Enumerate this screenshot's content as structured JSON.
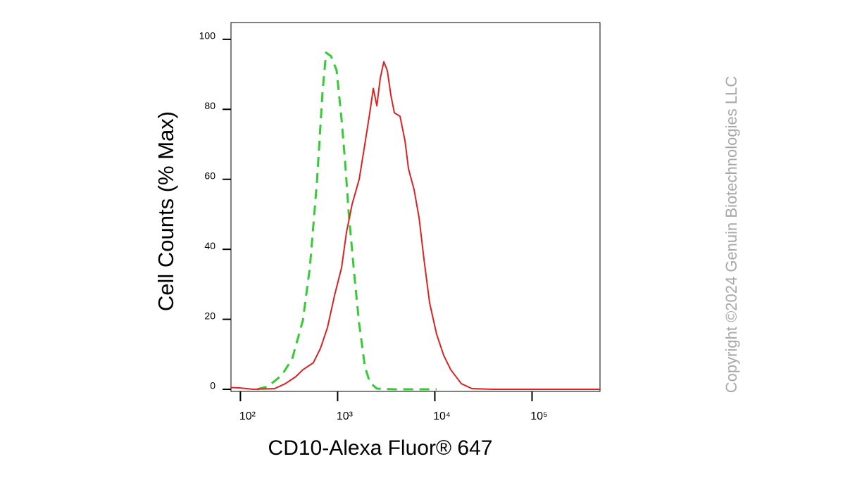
{
  "chart_data": {
    "type": "line",
    "xlabel": "CD10-Alexa Fluor® 647",
    "ylabel": "Cell Counts (% Max)",
    "annotation": "Copyright ©2024 Genuin Biotechnologies LLC",
    "xscale": "log",
    "xlim": [
      80,
      500000
    ],
    "xticks": [
      {
        "value": 100,
        "label": "10²"
      },
      {
        "value": 1000,
        "label": "10³"
      },
      {
        "value": 10000,
        "label": "10⁴"
      },
      {
        "value": 100000,
        "label": "10⁵"
      }
    ],
    "ylim": [
      -0.6,
      104.8
    ],
    "yticks": [
      0,
      20,
      40,
      60,
      80,
      100
    ],
    "grid": false,
    "series": [
      {
        "color": "#33cc33",
        "dashed": true,
        "x": [
          148,
          191,
          266,
          341,
          439,
          518,
          612,
          700,
          761,
          855,
          977,
          1099,
          1194,
          1298,
          1483,
          1667,
          1905,
          2142,
          2531,
          3837,
          10440
        ],
        "values": [
          0,
          0.8,
          4,
          8.7,
          19.7,
          34.8,
          59,
          85,
          96.2,
          95.2,
          91.1,
          77,
          65,
          50.7,
          32.8,
          18.7,
          6.6,
          2,
          0.2,
          0,
          0
        ]
      },
      {
        "color": "#e02020",
        "dashed": false,
        "x": [
          80,
          98,
          136,
          225,
          289,
          371,
          439,
          563,
          666,
          787,
          929,
          1099,
          1234,
          1410,
          1667,
          1905,
          2142,
          2329,
          2531,
          2750,
          2989,
          3250,
          3532,
          3837,
          4385,
          4932,
          5358,
          6124,
          6887,
          7744,
          8836,
          10440,
          12340,
          14580,
          18750,
          24050,
          39720,
          500000
        ],
        "values": [
          0.5,
          0.4,
          0,
          0.2,
          1.6,
          3.6,
          5.6,
          7.6,
          11.7,
          17.7,
          26.8,
          34.8,
          44.9,
          52.9,
          60,
          70,
          79,
          86,
          81,
          89,
          93.6,
          91,
          84,
          79,
          78,
          71,
          63,
          57,
          49,
          37,
          24.7,
          15.7,
          9.7,
          5.6,
          1.6,
          0.2,
          0,
          0
        ]
      }
    ]
  }
}
